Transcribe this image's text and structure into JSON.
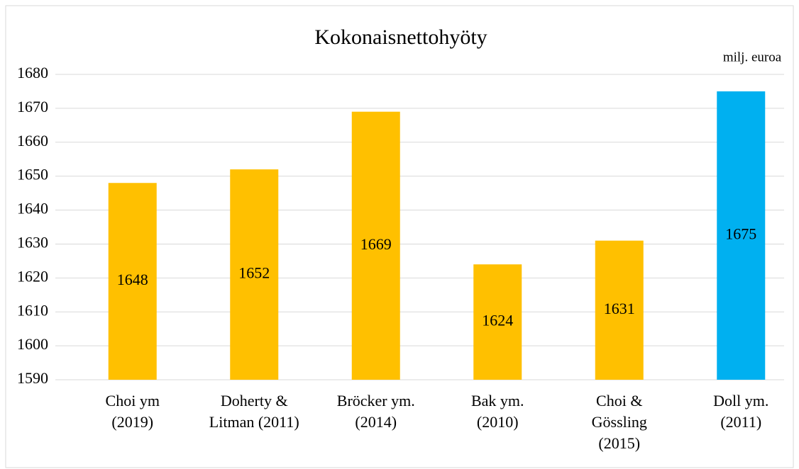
{
  "chart_data": {
    "type": "bar",
    "title": "Kokonaisnettohyöty",
    "unit_label": "milj. euroa",
    "categories": [
      [
        "Choi ym",
        "(2019)"
      ],
      [
        "Doherty &",
        "Litman (2011)"
      ],
      [
        "Bröcker ym.",
        "(2014)"
      ],
      [
        "Bak ym.",
        "(2010)"
      ],
      [
        "Choi &",
        "Gössling",
        "(2015)"
      ],
      [
        "Doll ym.",
        "(2011)"
      ]
    ],
    "values": [
      1648,
      1652,
      1669,
      1624,
      1631,
      1675
    ],
    "colors": [
      "#ffc000",
      "#ffc000",
      "#ffc000",
      "#ffc000",
      "#ffc000",
      "#00b0f0"
    ],
    "ylim": [
      1590,
      1680
    ],
    "yticks": [
      1590,
      1600,
      1610,
      1620,
      1630,
      1640,
      1650,
      1660,
      1670,
      1680
    ],
    "grid": true
  }
}
